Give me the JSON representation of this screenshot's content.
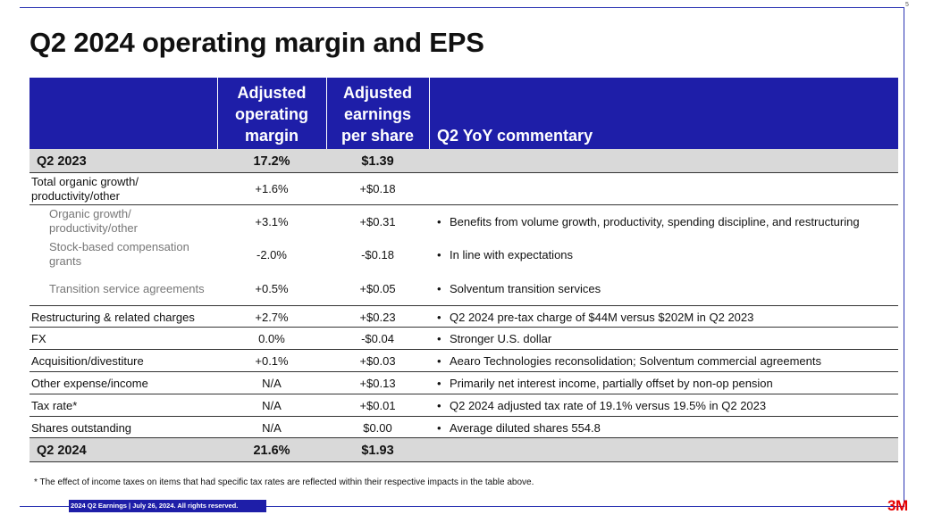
{
  "page_number": "5",
  "title": "Q2 2024 operating margin and EPS",
  "table": {
    "headers": {
      "margin": [
        "Adjusted",
        "operating",
        "margin"
      ],
      "eps": [
        "Adjusted",
        "earnings",
        "per share"
      ],
      "commentary": "Q2 YoY commentary"
    },
    "start": {
      "label": "Q2 2023",
      "margin": "17.2%",
      "eps": "$1.39"
    },
    "total_organic": {
      "label": [
        "Total organic growth/",
        "productivity/other"
      ],
      "margin": "+1.6%",
      "eps": "+$0.18"
    },
    "sub_rows": [
      {
        "label": [
          "Organic growth/",
          "productivity/other"
        ],
        "margin": "+3.1%",
        "eps": "+$0.31",
        "comment": "Benefits from volume growth, productivity, spending discipline, and restructuring"
      },
      {
        "label": [
          "Stock-based compensation",
          "grants"
        ],
        "margin": "-2.0%",
        "eps": "-$0.18",
        "comment": "In line with expectations"
      },
      {
        "label": [
          "Transition service agreements"
        ],
        "margin": "+0.5%",
        "eps": "+$0.05",
        "comment": "Solventum transition services"
      }
    ],
    "rows": [
      {
        "label": "Restructuring & related charges",
        "margin": "+2.7%",
        "eps": "+$0.23",
        "comment": "Q2 2024 pre-tax charge of $44M versus $202M in Q2 2023"
      },
      {
        "label": "FX",
        "margin": "0.0%",
        "eps": "-$0.04",
        "comment": "Stronger U.S. dollar"
      },
      {
        "label": "Acquisition/divestiture",
        "margin": "+0.1%",
        "eps": "+$0.03",
        "comment": "Aearo Technologies reconsolidation; Solventum commercial agreements"
      },
      {
        "label": "Other expense/income",
        "margin": "N/A",
        "eps": "+$0.13",
        "comment": "Primarily net interest income, partially offset by non-op pension"
      },
      {
        "label": "Tax rate*",
        "margin": "N/A",
        "eps": "+$0.01",
        "comment": "Q2 2024 adjusted tax rate of 19.1% versus 19.5% in Q2 2023"
      },
      {
        "label": "Shares outstanding",
        "margin": "N/A",
        "eps": "$0.00",
        "comment": "Average diluted shares 554.8"
      }
    ],
    "end": {
      "label": "Q2 2024",
      "margin": "21.6%",
      "eps": "$1.93"
    }
  },
  "footnote": "* The effect of income taxes on items that had specific tax rates are reflected within their respective impacts in the table above.",
  "footer_tag": "2024 Q2 Earnings | July 26, 2024. All rights reserved.",
  "logo_text": "3M",
  "colors": {
    "header_blue": "#1e1ea8",
    "row_gray": "#d9d9d9",
    "logo_red": "#e60000"
  }
}
